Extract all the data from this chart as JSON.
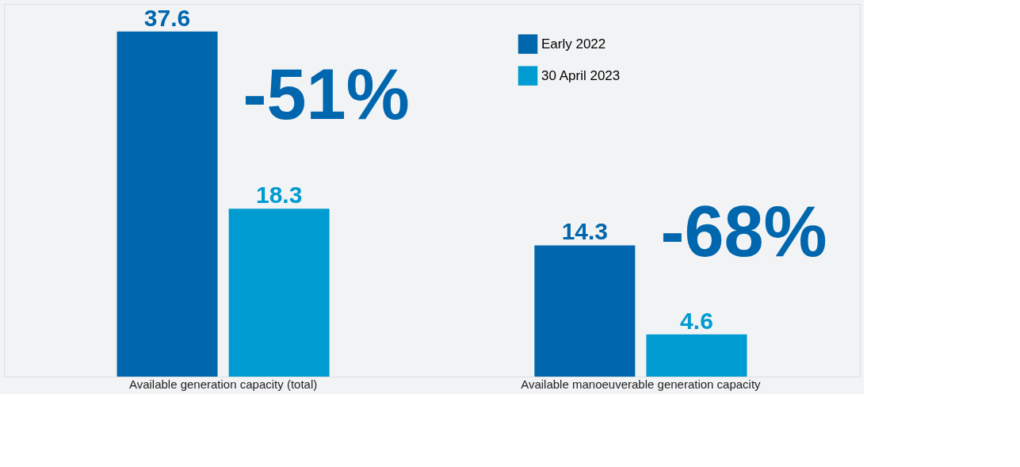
{
  "chart_data": {
    "type": "bar",
    "categories": [
      "Available generation capacity (total)",
      "Available manoeuverable generation capacity"
    ],
    "series": [
      {
        "name": "Early 2022",
        "color": "#0067ae",
        "values": [
          37.6,
          14.3
        ]
      },
      {
        "name": "30 April 2023",
        "color": "#009bd0",
        "values": [
          18.3,
          4.6
        ]
      }
    ],
    "data_labels": true,
    "annotations": [
      "-51%",
      "-68%"
    ],
    "legend": "top right",
    "grid": false
  }
}
